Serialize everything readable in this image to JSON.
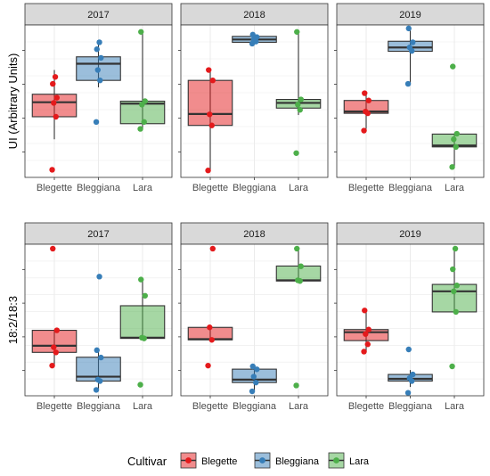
{
  "chart_data": {
    "type": "box",
    "categories": [
      "Blegette",
      "Bleggiana",
      "Lara"
    ],
    "colors": {
      "Blegette": "#e41a1c",
      "Bleggiana": "#377eb8",
      "Lara": "#4daf4a"
    },
    "facet_strip_fill": "#d9d9d9",
    "grid": true,
    "legend": {
      "title": "Cultivar",
      "position": "bottom",
      "entries": [
        "Blegette",
        "Bleggiana",
        "Lara"
      ]
    },
    "rows": [
      {
        "ylabel": "UI (Arbitrary Units)",
        "panels": [
          {
            "title": "2017",
            "boxes": [
              {
                "group": "Blegette",
                "whisker_low": 0.6,
                "q1": 0.665,
                "median": 0.707,
                "q3": 0.73,
                "whisker_high": 0.8,
                "points": [
                  0.512,
                  0.665,
                  0.705,
                  0.72,
                  0.76,
                  0.78
                ]
              },
              {
                "group": "Bleggiana",
                "whisker_low": 0.75,
                "q1": 0.77,
                "median": 0.818,
                "q3": 0.838,
                "whisker_high": 0.88,
                "points": [
                  0.65,
                  0.77,
                  0.8,
                  0.835,
                  0.86,
                  0.88
                ]
              },
              {
                "group": "Lara",
                "whisker_low": 0.63,
                "q1": 0.645,
                "median": 0.703,
                "q3": 0.71,
                "whisker_high": 0.91,
                "points": [
                  0.63,
                  0.65,
                  0.7,
                  0.71,
                  0.91
                ]
              }
            ]
          },
          {
            "title": "2018",
            "boxes": [
              {
                "group": "Blegette",
                "whisker_low": 0.51,
                "q1": 0.64,
                "median": 0.673,
                "q3": 0.77,
                "whisker_high": 0.8,
                "points": [
                  0.51,
                  0.64,
                  0.672,
                  0.77,
                  0.8
                ]
              },
              {
                "group": "Bleggiana",
                "whisker_low": 0.875,
                "q1": 0.88,
                "median": 0.888,
                "q3": 0.897,
                "whisker_high": 0.902,
                "points": [
                  0.876,
                  0.882,
                  0.888,
                  0.895,
                  0.902
                ]
              },
              {
                "group": "Lara",
                "whisker_low": 0.67,
                "q1": 0.69,
                "median": 0.705,
                "q3": 0.715,
                "whisker_high": 0.91,
                "points": [
                  0.56,
                  0.685,
                  0.7,
                  0.715,
                  0.91
                ]
              }
            ]
          },
          {
            "title": "2019",
            "boxes": [
              {
                "group": "Blegette",
                "whisker_low": 0.63,
                "q1": 0.675,
                "median": 0.68,
                "q3": 0.712,
                "whisker_high": 0.735,
                "points": [
                  0.625,
                  0.675,
                  0.68,
                  0.712,
                  0.733
                ]
              },
              {
                "group": "Bleggiana",
                "whisker_low": 0.76,
                "q1": 0.854,
                "median": 0.865,
                "q3": 0.883,
                "whisker_high": 0.92,
                "points": [
                  0.76,
                  0.855,
                  0.865,
                  0.88,
                  0.92
                ]
              },
              {
                "group": "Lara",
                "whisker_low": 0.52,
                "q1": 0.578,
                "median": 0.582,
                "q3": 0.615,
                "whisker_high": 0.615,
                "points": [
                  0.52,
                  0.578,
                  0.6,
                  0.616,
                  0.81
                ]
              }
            ]
          }
        ]
      },
      {
        "ylabel": "18:2/18:3",
        "panels": [
          {
            "title": "2017",
            "boxes": [
              {
                "group": "Blegette",
                "whisker_low": 0.2,
                "q1": 0.295,
                "median": 0.34,
                "q3": 0.445,
                "whisker_high": 0.445,
                "points": [
                  0.205,
                  0.295,
                  0.33,
                  0.445,
                  1.0
                ]
              },
              {
                "group": "Bleggiana",
                "whisker_low": 0.04,
                "q1": 0.1,
                "median": 0.13,
                "q3": 0.262,
                "whisker_high": 0.31,
                "points": [
                  0.04,
                  0.1,
                  0.11,
                  0.26,
                  0.31,
                  0.81
                ]
              },
              {
                "group": "Lara",
                "whisker_low": 0.39,
                "q1": 0.39,
                "median": 0.395,
                "q3": 0.612,
                "whisker_high": 0.79,
                "points": [
                  0.075,
                  0.39,
                  0.395,
                  0.68,
                  0.79
                ]
              }
            ]
          },
          {
            "title": "2018",
            "boxes": [
              {
                "group": "Blegette",
                "whisker_low": 0.38,
                "q1": 0.38,
                "median": 0.385,
                "q3": 0.465,
                "whisker_high": 0.465,
                "points": [
                  0.205,
                  0.38,
                  0.465,
                  1.0
                ]
              },
              {
                "group": "Bleggiana",
                "whisker_low": 0.03,
                "q1": 0.09,
                "median": 0.11,
                "q3": 0.181,
                "whisker_high": 0.2,
                "points": [
                  0.03,
                  0.09,
                  0.13,
                  0.18,
                  0.2
                ]
              },
              {
                "group": "Lara",
                "whisker_low": 0.77,
                "q1": 0.78,
                "median": 0.785,
                "q3": 0.882,
                "whisker_high": 1.0,
                "points": [
                  0.07,
                  0.78,
                  0.785,
                  0.88,
                  1.0
                ]
              }
            ]
          },
          {
            "title": "2019",
            "boxes": [
              {
                "group": "Blegette",
                "whisker_low": 0.3,
                "q1": 0.375,
                "median": 0.432,
                "q3": 0.45,
                "whisker_high": 0.58,
                "points": [
                  0.3,
                  0.35,
                  0.42,
                  0.45,
                  0.58
                ]
              },
              {
                "group": "Bleggiana",
                "whisker_low": 0.06,
                "q1": 0.1,
                "median": 0.115,
                "q3": 0.145,
                "whisker_high": 0.175,
                "points": [
                  0.02,
                  0.1,
                  0.12,
                  0.145,
                  0.315
                ]
              },
              {
                "group": "Lara",
                "whisker_low": 0.57,
                "q1": 0.57,
                "median": 0.71,
                "q3": 0.757,
                "whisker_high": 1.0,
                "points": [
                  0.2,
                  0.57,
                  0.71,
                  0.75,
                  0.86,
                  1.0
                ]
              }
            ]
          }
        ]
      }
    ]
  }
}
